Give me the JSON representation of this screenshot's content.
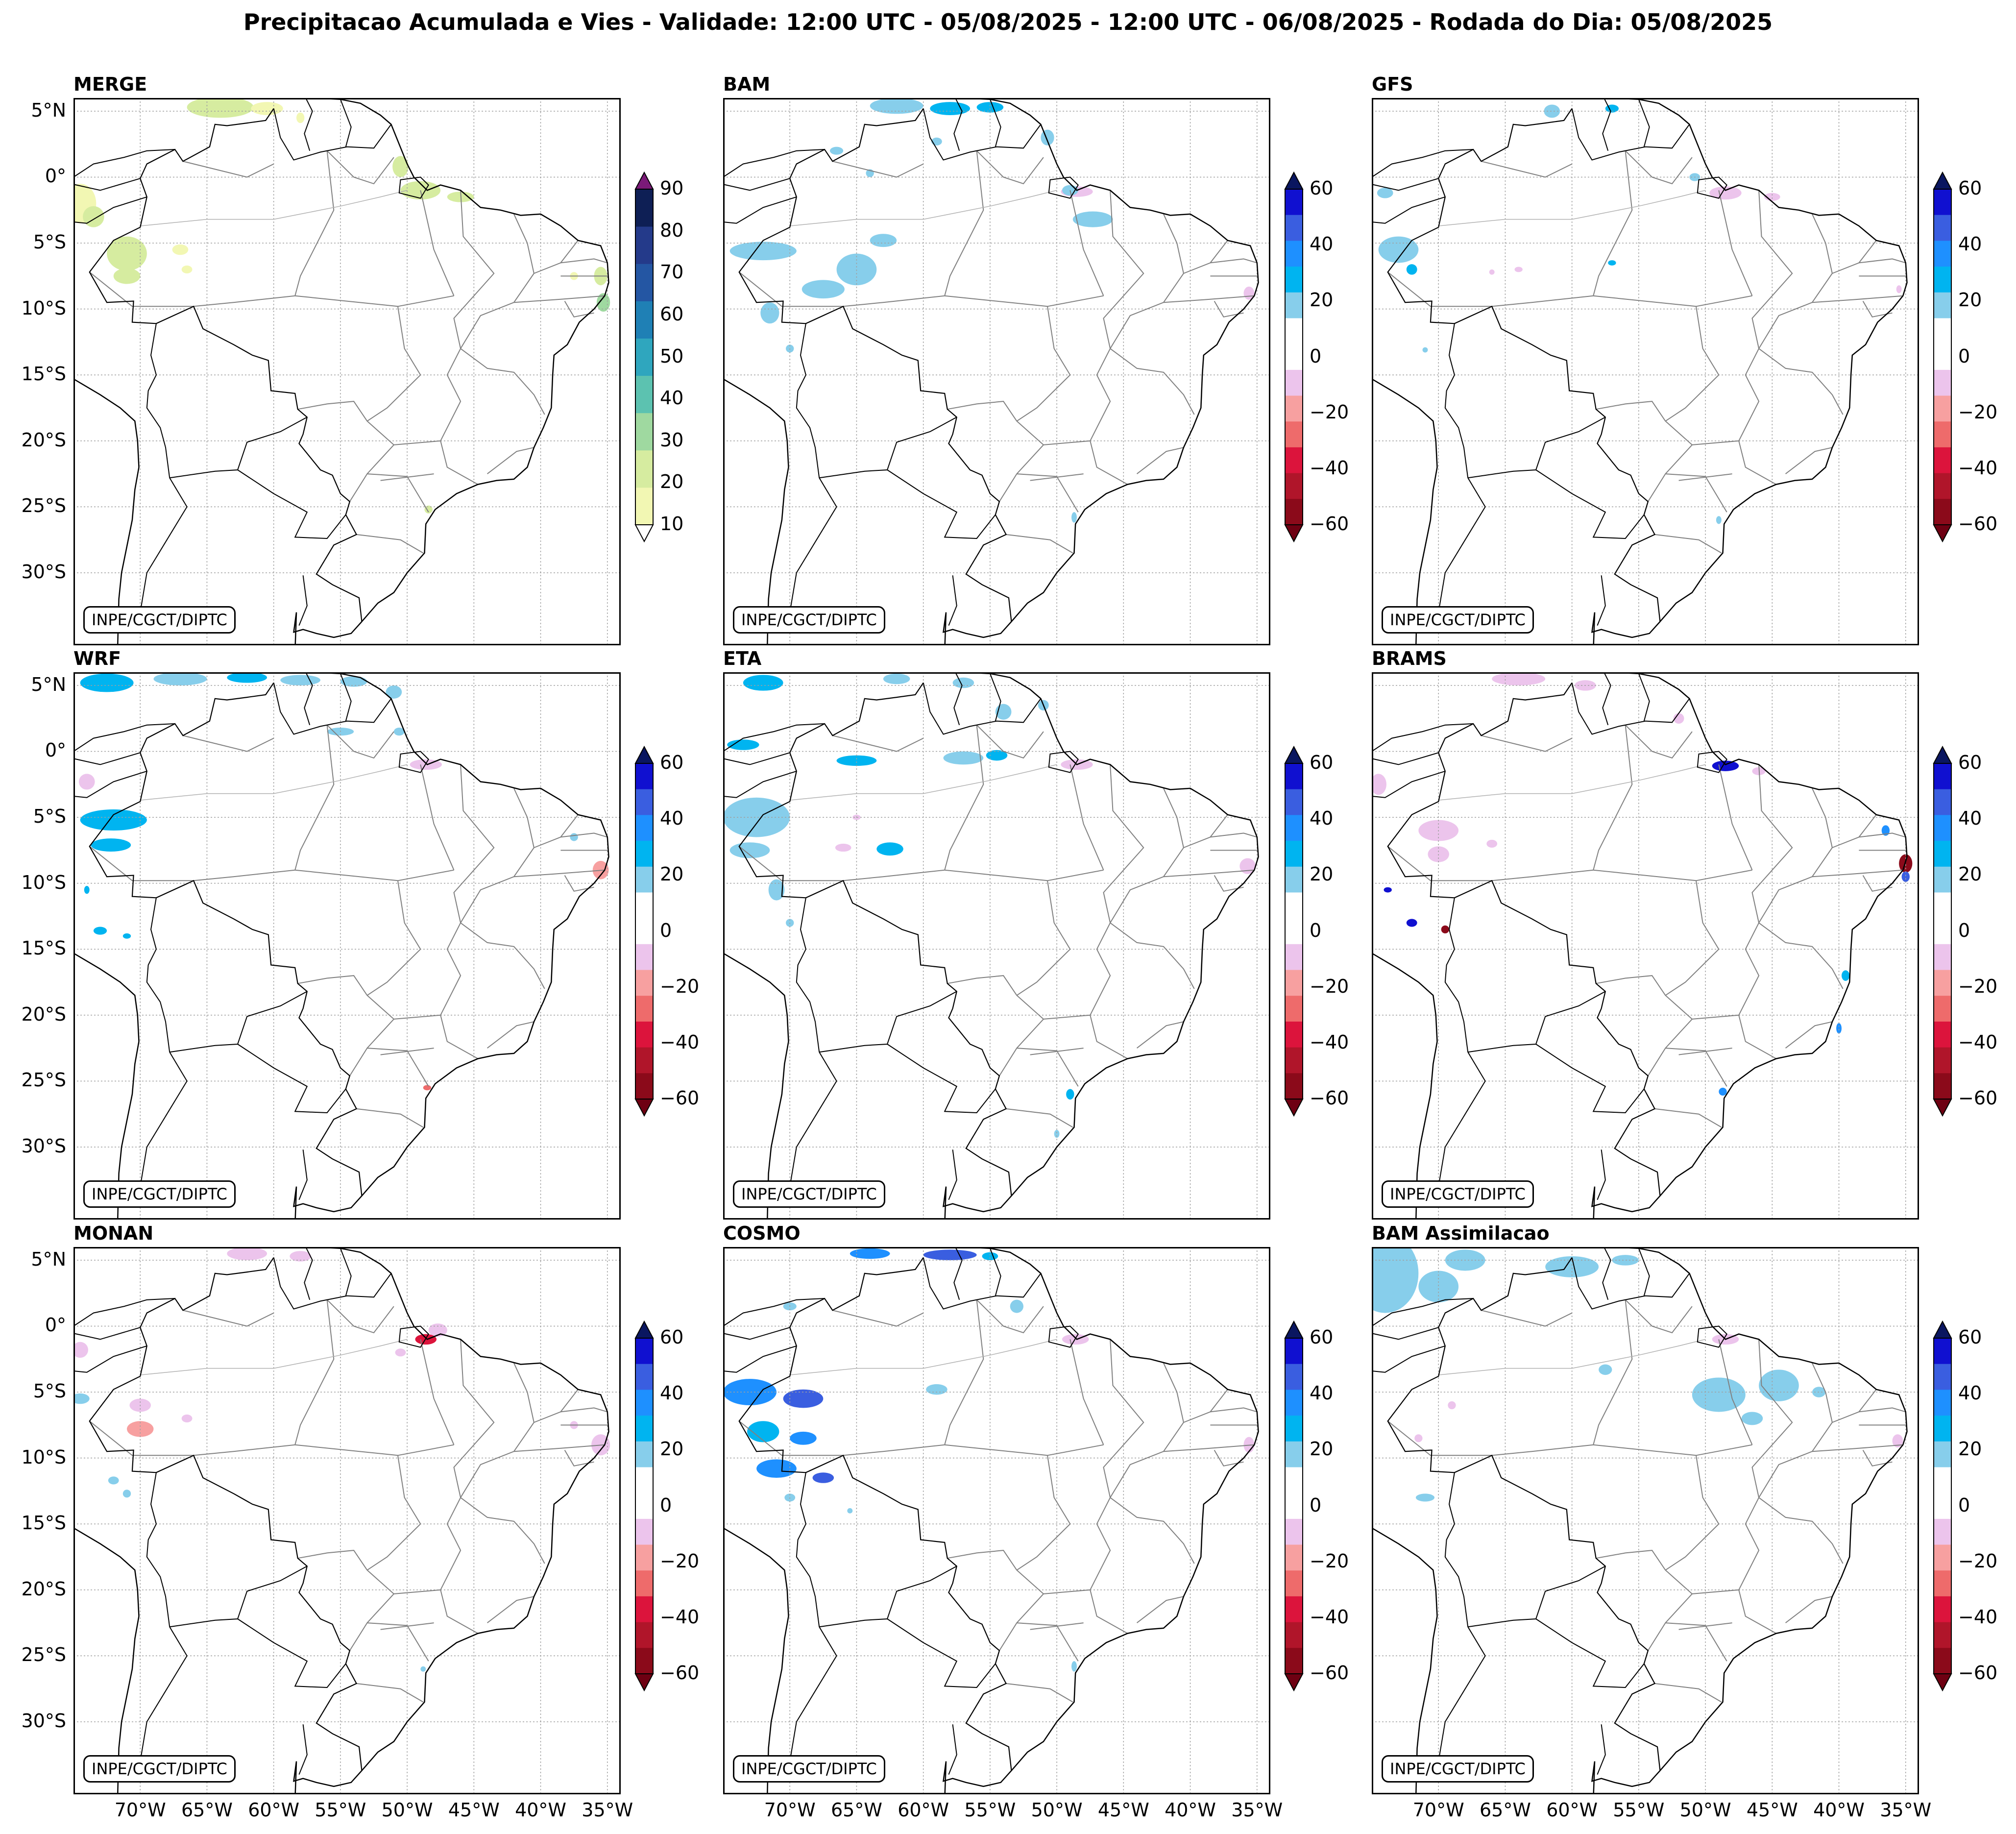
{
  "title": "Precipitacao Acumulada e Vies - Validade: 12:00 UTC - 05/08/2025 - 12:00 UTC - 06/08/2025 - Rodada do Dia: 05/08/2025",
  "stamp_text": "INPE/CGCT/DIPTC",
  "lat_labels": [
    "5°N",
    "0°",
    "5°S",
    "10°S",
    "15°S",
    "20°S",
    "25°S",
    "30°S"
  ],
  "lon_labels": [
    "70°W",
    "65°W",
    "60°W",
    "55°W",
    "50°W",
    "45°W",
    "40°W",
    "35°W"
  ],
  "panels": [
    {
      "name": "MERGE",
      "type": "precip"
    },
    {
      "name": "BAM",
      "type": "bias"
    },
    {
      "name": "GFS",
      "type": "bias"
    },
    {
      "name": "WRF",
      "type": "bias"
    },
    {
      "name": "ETA",
      "type": "bias"
    },
    {
      "name": "BRAMS",
      "type": "bias"
    },
    {
      "name": "MONAN",
      "type": "bias"
    },
    {
      "name": "COSMO",
      "type": "bias"
    },
    {
      "name": "BAM Assimilacao",
      "type": "bias"
    }
  ],
  "precip_colorbar": {
    "ticks": [
      "10",
      "20",
      "30",
      "40",
      "50",
      "60",
      "70",
      "80",
      "90"
    ],
    "colors": [
      "#f2f7b3",
      "#d6eca0",
      "#9fd9a0",
      "#5cc2b0",
      "#2fa6be",
      "#1f80b5",
      "#2456a3",
      "#243a8a",
      "#0e1f55"
    ],
    "extend_low": "#ffffff",
    "extend_high": "#7b1a78"
  },
  "bias_colorbar": {
    "ticks": [
      "60",
      "40",
      "20",
      "0",
      "−20",
      "−40",
      "−60"
    ],
    "colors_top_to_bottom": [
      "#1010d0",
      "#3a5ee0",
      "#1e90ff",
      "#00b4f0",
      "#87ceeb",
      "#ffffff",
      "#ffffff",
      "#ecc4ec",
      "#f7a0a0",
      "#ee6b6b",
      "#dc143c",
      "#b0152a",
      "#8b0a1a"
    ],
    "extend_high": "#0a1660",
    "extend_low": "#6e0012"
  },
  "colors": {
    "background": "#ffffff",
    "coast": "#000000",
    "borders": "#808080",
    "grid": "#a0a0a0"
  }
}
